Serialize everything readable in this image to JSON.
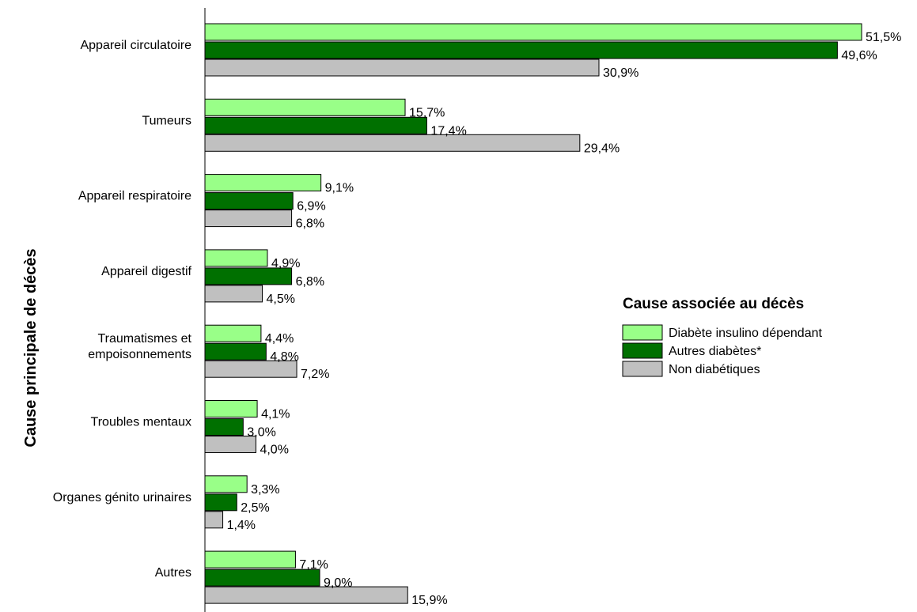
{
  "chart_data": {
    "type": "bar",
    "orientation": "horizontal",
    "ylabel": "Cause principale de décès",
    "xlabel": "",
    "xlim": [
      0,
      55
    ],
    "grid": false,
    "categories": [
      "Appareil circulatoire",
      "Tumeurs",
      "Appareil respiratoire",
      "Appareil digestif",
      "Traumatismes et empoisonnements",
      "Troubles mentaux",
      "Organes génito urinaires",
      "Autres"
    ],
    "category_lines": [
      [
        "Appareil circulatoire"
      ],
      [
        "Tumeurs"
      ],
      [
        "Appareil respiratoire"
      ],
      [
        "Appareil digestif"
      ],
      [
        "Traumatismes et",
        "empoisonnements"
      ],
      [
        "Troubles mentaux"
      ],
      [
        "Organes génito urinaires"
      ],
      [
        "Autres"
      ]
    ],
    "series": [
      {
        "name": "Diabète insulino dépendant",
        "color": "#99ff88",
        "values": [
          51.5,
          15.7,
          9.1,
          4.9,
          4.4,
          4.1,
          3.3,
          7.1
        ],
        "labels": [
          "51,5%",
          "15,7%",
          "9,1%",
          "4,9%",
          "4,4%",
          "4,1%",
          "3,3%",
          "7,1%"
        ]
      },
      {
        "name": "Autres diabètes*",
        "color": "#007000",
        "values": [
          49.6,
          17.4,
          6.9,
          6.8,
          4.8,
          3.0,
          2.5,
          9.0
        ],
        "labels": [
          "49,6%",
          "17,4%",
          "6,9%",
          "6,8%",
          "4,8%",
          "3,0%",
          "2,5%",
          "9,0%"
        ]
      },
      {
        "name": "Non diabétiques",
        "color": "#c0c0c0",
        "values": [
          30.9,
          29.4,
          6.8,
          4.5,
          7.2,
          4.0,
          1.4,
          15.9
        ],
        "labels": [
          "30,9%",
          "29,4%",
          "6,8%",
          "4,5%",
          "7,2%",
          "4,0%",
          "1,4%",
          "15,9%"
        ]
      }
    ],
    "legend": {
      "title": "Cause associée au décès",
      "placement": "right"
    }
  }
}
